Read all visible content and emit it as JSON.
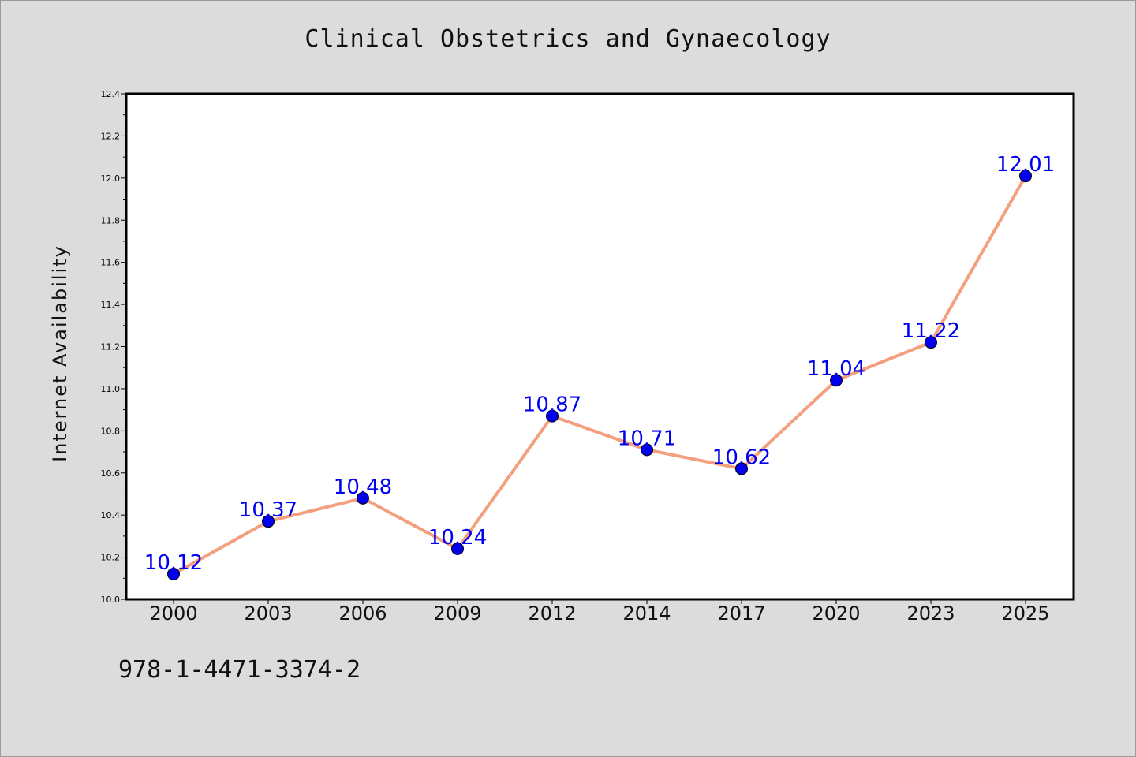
{
  "chart_data": {
    "type": "line",
    "title": "Clinical Obstetrics and Gynaecology",
    "ylabel": "Internet Availability",
    "xlabel": "",
    "categories": [
      "2000",
      "2003",
      "2006",
      "2009",
      "2012",
      "2014",
      "2017",
      "2020",
      "2023",
      "2025"
    ],
    "series": [
      {
        "values": [
          10.12,
          10.37,
          10.48,
          10.24,
          10.87,
          10.71,
          10.62,
          11.04,
          11.22,
          12.01
        ]
      }
    ],
    "data_labels": [
      "10.12",
      "10.37",
      "10.48",
      "10.24",
      "10.87",
      "10.71",
      "10.62",
      "11.04",
      "11.22",
      "12.01"
    ],
    "ylim": [
      10.0,
      12.4
    ],
    "yticks": [
      "10.0",
      "10.2",
      "10.4",
      "10.6",
      "10.8",
      "11.0",
      "11.2",
      "11.4",
      "11.6",
      "11.8",
      "12.0",
      "12.2",
      "12.4"
    ],
    "grid": false,
    "line_color": "#f4a07f",
    "marker_color": "#0000ee",
    "label_color": "#0000ee"
  },
  "footer": {
    "isbn": "978-1-4471-3374-2"
  }
}
